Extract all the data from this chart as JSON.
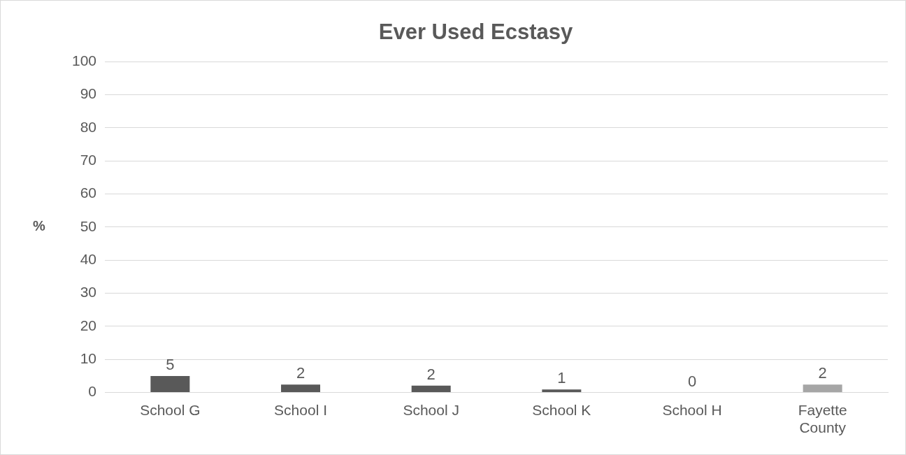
{
  "chart_data": {
    "type": "bar",
    "title": "Ever Used Ecstasy",
    "ylabel": "%",
    "categories": [
      "School G",
      "School I",
      "School J",
      "School K",
      "School H",
      "Fayette County"
    ],
    "values": [
      5,
      2.4,
      2.1,
      0.9,
      0,
      2.4
    ],
    "colors": [
      "#595959",
      "#595959",
      "#595959",
      "#595959",
      "#595959",
      "#a6a6a6"
    ],
    "value_labels": [
      "5",
      "2",
      "2",
      "1",
      "0",
      "2"
    ],
    "ylim": [
      0,
      100
    ],
    "yticks": [
      0,
      10,
      20,
      30,
      40,
      50,
      60,
      70,
      80,
      90,
      100
    ],
    "grid": "y",
    "legend": false
  }
}
